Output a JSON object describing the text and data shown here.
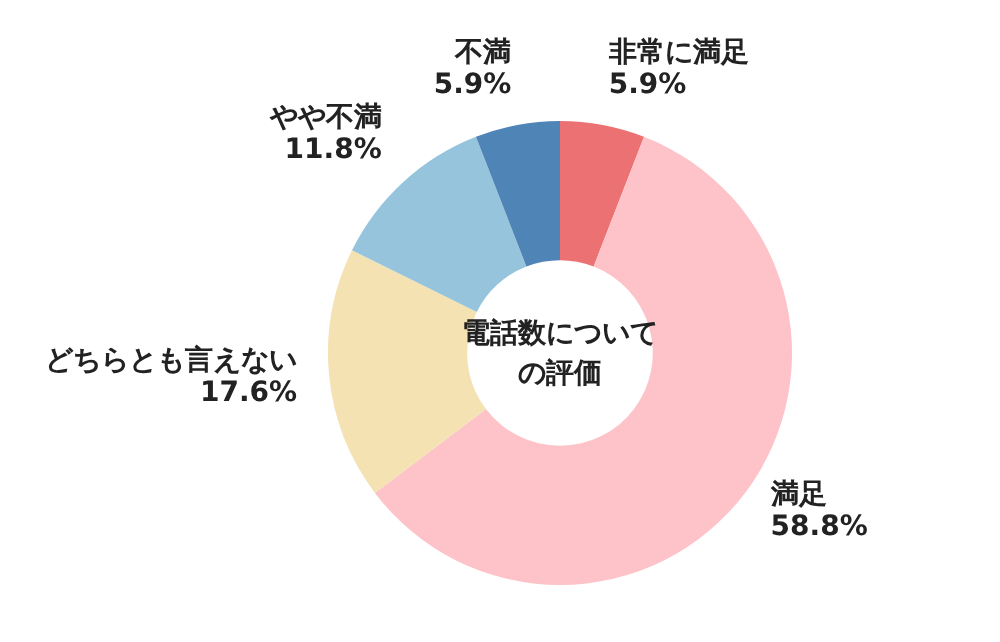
{
  "chart_data": {
    "type": "donut",
    "title": "電話数についての評価",
    "categories": [
      "非常に満足",
      "満足",
      "どちらとも言えない",
      "やや不満",
      "不満"
    ],
    "values": [
      5.9,
      58.8,
      17.6,
      11.8,
      5.9
    ],
    "value_labels": [
      "5.9%",
      "58.8%",
      "17.6%",
      "11.8%",
      "5.9%"
    ],
    "colors": [
      "#ec7172",
      "#fdc3c8",
      "#f5e2b3",
      "#95c4dc",
      "#4f84b6"
    ],
    "legend": false
  }
}
